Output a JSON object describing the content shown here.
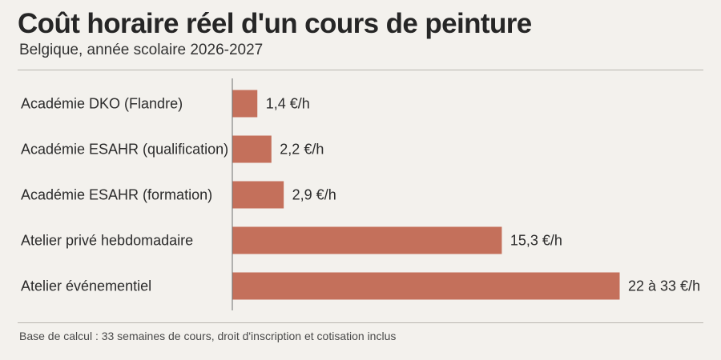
{
  "header": {
    "title": "Coût horaire réel d'un cours de peinture",
    "subtitle": "Belgique, année scolaire 2026-2027"
  },
  "footnote": "Base de calcul : 33 semaines de cours, droit d'inscription et cotisation inclus",
  "colors": {
    "bar": "#c4705b",
    "axis": "#6e6e6e",
    "background": "#f3f1ed"
  },
  "chart_data": {
    "type": "bar",
    "orientation": "horizontal",
    "title": "Coût horaire réel d'un cours de peinture",
    "subtitle": "Belgique, année scolaire 2026-2027",
    "unit": "€/h",
    "categories": [
      "Académie DKO (Flandre)",
      "Académie ESAHR (qualification)",
      "Académie ESAHR (formation)",
      "Atelier privé hebdomadaire",
      "Atelier événementiel"
    ],
    "values": [
      1.4,
      2.2,
      2.9,
      15.3,
      22
    ],
    "ranges": [
      null,
      null,
      null,
      null,
      [
        22,
        33
      ]
    ],
    "value_labels": [
      "1,4 €/h",
      "2,2 €/h",
      "2,9 €/h",
      "15,3 €/h",
      "22 à 33 €/h"
    ],
    "xlim": [
      0,
      22
    ],
    "grid": false,
    "legend": "none"
  }
}
